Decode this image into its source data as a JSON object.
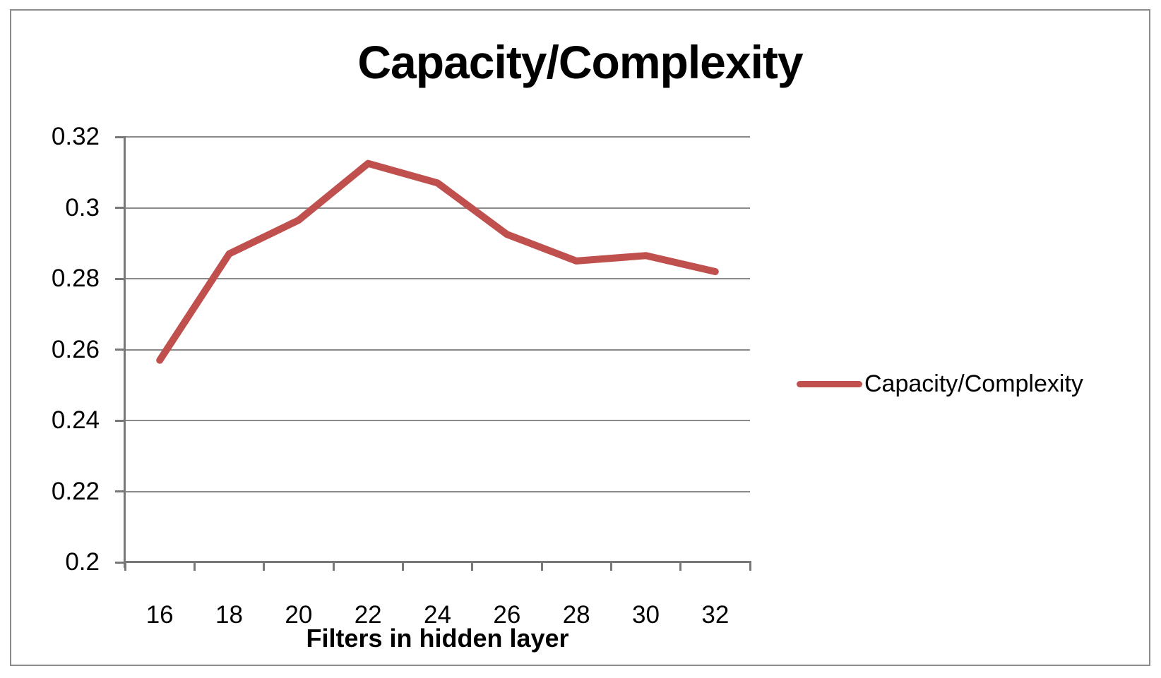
{
  "chart_data": {
    "type": "line",
    "title": "Capacity/Complexity",
    "xlabel": "Filters in hidden layer",
    "ylabel": "",
    "x": [
      16,
      18,
      20,
      22,
      24,
      26,
      28,
      30,
      32
    ],
    "series": [
      {
        "name": "Capacity/Complexity",
        "color": "#c0504d",
        "values": [
          0.257,
          0.287,
          0.2965,
          0.3125,
          0.307,
          0.2925,
          0.285,
          0.2865,
          0.282
        ]
      }
    ],
    "ylim": [
      0.2,
      0.32
    ],
    "ytick_step": 0.02,
    "ytick_labels": [
      "0.32",
      "0.3",
      "0.28",
      "0.26",
      "0.24",
      "0.22",
      "0.2"
    ],
    "xtick_labels": [
      "16",
      "18",
      "20",
      "22",
      "24",
      "26",
      "28",
      "30",
      "32"
    ],
    "grid": true,
    "legend_position": "right",
    "legend_entries": [
      "Capacity/Complexity"
    ]
  },
  "colors": {
    "series": "#c0504d",
    "gridline": "#8a8a8a",
    "axis": "#787878",
    "border": "#8c8c8c",
    "text": "#000000",
    "background": "#ffffff"
  }
}
